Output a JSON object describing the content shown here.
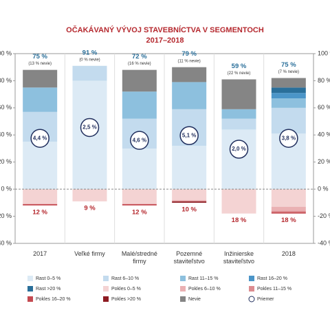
{
  "chart_data": {
    "type": "stacked-bar",
    "title": "OČAKÁVANÝ VÝVOJ STAVEBNÍCTVA V SEGMENTOCH",
    "subtitle": "2017–2018",
    "categories": [
      "2017",
      "Veľké firmy",
      "Malé/stredné firmy",
      "Pozemné staviteľstvo",
      "Inžinierske staviteľstvo",
      "2018"
    ],
    "ylim": [
      -40,
      100
    ],
    "yticks": [
      {
        "value": 100,
        "label": "100 %"
      },
      {
        "value": 80,
        "label": "80 %"
      },
      {
        "value": 60,
        "label": "60 %"
      },
      {
        "value": 40,
        "label": "40 %"
      },
      {
        "value": 20,
        "label": "20 %"
      },
      {
        "value": 0,
        "label": "0 %"
      },
      {
        "value": -20,
        "label": "-20 %"
      },
      {
        "value": -40,
        "label": "-40 %"
      }
    ],
    "series": [
      {
        "name": "Rast 0–5 %",
        "color": "#dceaf5",
        "values": [
          35,
          80,
          30,
          32,
          44,
          41
        ]
      },
      {
        "name": "Rast 6–10 %",
        "color": "#c3dbee",
        "values": [
          22,
          11,
          22,
          27,
          8,
          19
        ]
      },
      {
        "name": "Rast 11–15 %",
        "color": "#8dc0de",
        "values": [
          18,
          0,
          20,
          20,
          7,
          7
        ]
      },
      {
        "name": "Rast 16–20 %",
        "color": "#4b95c8",
        "values": [
          0,
          0,
          0,
          0,
          0,
          4
        ]
      },
      {
        "name": "Rast >20 %",
        "color": "#2a6f9a",
        "values": [
          0,
          0,
          0,
          0,
          0,
          4
        ]
      },
      {
        "name": "Pokles 0–5 %",
        "color": "#f4d3d3",
        "values": [
          -11,
          -9,
          -11,
          -8,
          -18,
          -13
        ]
      },
      {
        "name": "Pokles 6–10 %",
        "color": "#eab1b3",
        "values": [
          0,
          0,
          0,
          -1,
          0,
          -3
        ]
      },
      {
        "name": "Pokles 11–15 %",
        "color": "#dc8c90",
        "values": [
          0,
          0,
          0,
          0,
          0,
          -1
        ]
      },
      {
        "name": "Pokles 16–20 %",
        "color": "#c44a51",
        "values": [
          -1,
          0,
          -1,
          0,
          0,
          -1
        ]
      },
      {
        "name": "Pokles >20 %",
        "color": "#8e1b22",
        "values": [
          0,
          0,
          0,
          -1,
          0,
          0
        ]
      },
      {
        "name": "Nevie",
        "color": "#858585",
        "values": [
          13,
          0,
          16,
          11,
          22,
          7
        ]
      }
    ],
    "priemer": {
      "name": "Priemer",
      "color": "#1f2d5c",
      "values": [
        4.4,
        2.5,
        4.6,
        5.1,
        2.0,
        3.8
      ],
      "value_labels": [
        "4,4 %",
        "2,5 %",
        "4,6 %",
        "5,1 %",
        "2,0 %",
        "3,8 %"
      ]
    },
    "top_labels": [
      "75 %",
      "91 %",
      "72 %",
      "79 %",
      "59 %",
      "75 %"
    ],
    "nevie_labels": [
      "(13 % nevie)",
      "(0 % nevie)",
      "(16 % nevie)",
      "(11 % nevie)",
      "(22 % nevie)",
      "(7 % nevie)"
    ],
    "bottom_labels": [
      "12 %",
      "9 %",
      "12 %",
      "10 %",
      "18 %",
      "18 %"
    ]
  }
}
